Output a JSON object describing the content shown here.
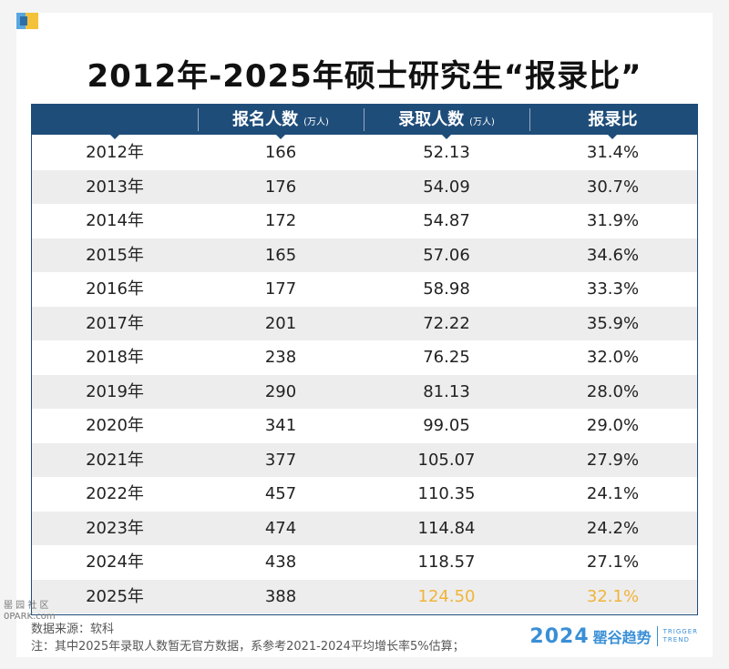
{
  "title": "2012年-2025年硕士研究生“报录比”",
  "header": {
    "col1": "",
    "col2": "报名人数",
    "col2_unit": "(万人)",
    "col3": "录取人数",
    "col3_unit": "(万人)",
    "col4": "报录比"
  },
  "rows": [
    {
      "year": "2012年",
      "applicants": "166",
      "admitted": "52.13",
      "ratio": "31.4%"
    },
    {
      "year": "2013年",
      "applicants": "176",
      "admitted": "54.09",
      "ratio": "30.7%"
    },
    {
      "year": "2014年",
      "applicants": "172",
      "admitted": "54.87",
      "ratio": "31.9%"
    },
    {
      "year": "2015年",
      "applicants": "165",
      "admitted": "57.06",
      "ratio": "34.6%"
    },
    {
      "year": "2016年",
      "applicants": "177",
      "admitted": "58.98",
      "ratio": "33.3%"
    },
    {
      "year": "2017年",
      "applicants": "201",
      "admitted": "72.22",
      "ratio": "35.9%"
    },
    {
      "year": "2018年",
      "applicants": "238",
      "admitted": "76.25",
      "ratio": "32.0%"
    },
    {
      "year": "2019年",
      "applicants": "290",
      "admitted": "81.13",
      "ratio": "28.0%"
    },
    {
      "year": "2020年",
      "applicants": "341",
      "admitted": "99.05",
      "ratio": "29.0%"
    },
    {
      "year": "2021年",
      "applicants": "377",
      "admitted": "105.07",
      "ratio": "27.9%"
    },
    {
      "year": "2022年",
      "applicants": "457",
      "admitted": "110.35",
      "ratio": "24.1%"
    },
    {
      "year": "2023年",
      "applicants": "474",
      "admitted": "114.84",
      "ratio": "24.2%"
    },
    {
      "year": "2024年",
      "applicants": "438",
      "admitted": "118.57",
      "ratio": "27.1%"
    },
    {
      "year": "2025年",
      "applicants": "388",
      "admitted": "124.50",
      "ratio": "32.1%"
    }
  ],
  "highlight_color": "#f0b43a",
  "header_color": "#1f4d7a",
  "footer": {
    "source": "数据来源：软科",
    "note": "注：其中2025年录取人数暂无官方数据，系参考2021-2024平均增长率5%估算；"
  },
  "brand": {
    "year": "2024",
    "name": "罂谷趋势",
    "en_line1": "TRIGGER",
    "en_line2": "TREND"
  },
  "watermark": {
    "line1": "罂 园 社 区",
    "line2": "0PARK.com"
  }
}
